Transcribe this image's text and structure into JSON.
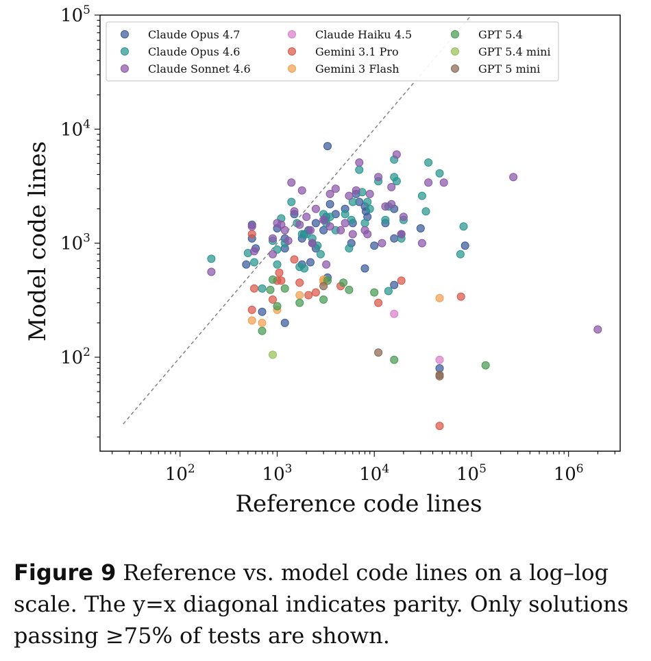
{
  "chart_data": {
    "type": "scatter",
    "xlabel": "Reference code lines",
    "ylabel": "Model code lines",
    "xscale": "log",
    "yscale": "log",
    "xlim": [
      15,
      3400000
    ],
    "ylim": [
      15,
      100000
    ],
    "xticks": [
      {
        "base": "10",
        "exp": "2",
        "value": 100
      },
      {
        "base": "10",
        "exp": "3",
        "value": 1000
      },
      {
        "base": "10",
        "exp": "4",
        "value": 10000
      },
      {
        "base": "10",
        "exp": "5",
        "value": 100000
      },
      {
        "base": "10",
        "exp": "6",
        "value": 1000000
      }
    ],
    "yticks": [
      {
        "base": "10",
        "exp": "2",
        "value": 100
      },
      {
        "base": "10",
        "exp": "3",
        "value": 1000
      },
      {
        "base": "10",
        "exp": "4",
        "value": 10000
      },
      {
        "base": "10",
        "exp": "5",
        "value": 100000
      }
    ],
    "grid": false,
    "legend_position": "top",
    "diagonal": {
      "from": 26,
      "to": 100000
    },
    "series": [
      {
        "name": "Claude Opus 4.7",
        "color": "#3b5b9a",
        "points": [
          [
            3300,
            7100
          ],
          [
            550,
            1450
          ],
          [
            550,
            1100
          ],
          [
            600,
            900
          ],
          [
            480,
            650
          ],
          [
            700,
            250
          ],
          [
            1200,
            200
          ],
          [
            1000,
            1350
          ],
          [
            1200,
            900
          ],
          [
            1200,
            1100
          ],
          [
            1500,
            1800
          ],
          [
            1800,
            1100
          ],
          [
            1900,
            1200
          ],
          [
            2100,
            1300
          ],
          [
            2300,
            1000
          ],
          [
            2500,
            1500
          ],
          [
            3000,
            1300
          ],
          [
            3100,
            1600
          ],
          [
            3200,
            1700
          ],
          [
            3500,
            2200
          ],
          [
            5000,
            2000
          ],
          [
            5800,
            1000
          ],
          [
            6000,
            1500
          ],
          [
            6500,
            2700
          ],
          [
            7000,
            2300
          ],
          [
            8000,
            2100
          ],
          [
            8200,
            1900
          ],
          [
            8000,
            600
          ],
          [
            8500,
            1700
          ],
          [
            10000,
            950
          ],
          [
            13000,
            1500
          ],
          [
            16000,
            2000
          ],
          [
            16000,
            1100
          ],
          [
            16000,
            430
          ],
          [
            19000,
            1200
          ],
          [
            30000,
            1350
          ],
          [
            47000,
            80
          ],
          [
            86000,
            950
          ],
          [
            1800,
            650
          ],
          [
            2200,
            680
          ],
          [
            2500,
            900
          ],
          [
            3300,
            500
          ],
          [
            4000,
            1800
          ]
        ]
      },
      {
        "name": "Claude Opus 4.6",
        "color": "#2a9690",
        "points": [
          [
            210,
            730
          ],
          [
            500,
            820
          ],
          [
            580,
            680
          ],
          [
            700,
            400
          ],
          [
            900,
            1050
          ],
          [
            1000,
            880
          ],
          [
            1000,
            650
          ],
          [
            1100,
            1650
          ],
          [
            1200,
            1000
          ],
          [
            1400,
            2300
          ],
          [
            1600,
            1500
          ],
          [
            1700,
            620
          ],
          [
            1800,
            1200
          ],
          [
            1900,
            600
          ],
          [
            2000,
            1200
          ],
          [
            2300,
            1100
          ],
          [
            2600,
            950
          ],
          [
            2800,
            800
          ],
          [
            3000,
            1800
          ],
          [
            3200,
            1500
          ],
          [
            3500,
            1700
          ],
          [
            4000,
            1300
          ],
          [
            5000,
            1800
          ],
          [
            5500,
            900
          ],
          [
            5800,
            1600
          ],
          [
            6000,
            2300
          ],
          [
            7000,
            4400
          ],
          [
            7500,
            2800
          ],
          [
            8000,
            1500
          ],
          [
            8500,
            2300
          ],
          [
            9000,
            2000
          ],
          [
            11000,
            3500
          ],
          [
            13000,
            1600
          ],
          [
            14000,
            2100
          ],
          [
            16000,
            5400
          ],
          [
            16000,
            3800
          ],
          [
            17000,
            3500
          ],
          [
            19000,
            1100
          ],
          [
            20000,
            1600
          ],
          [
            31000,
            2600
          ],
          [
            34000,
            1900
          ],
          [
            36000,
            5100
          ],
          [
            47000,
            4100
          ],
          [
            77000,
            800
          ],
          [
            83000,
            1400
          ],
          [
            14000,
            380
          ]
        ]
      },
      {
        "name": "Claude Sonnet 4.6",
        "color": "#8a57a8",
        "points": [
          [
            210,
            560
          ],
          [
            550,
            1400
          ],
          [
            580,
            850
          ],
          [
            900,
            1100
          ],
          [
            1000,
            1500
          ],
          [
            1100,
            1450
          ],
          [
            1200,
            1300
          ],
          [
            1300,
            1050
          ],
          [
            1400,
            3400
          ],
          [
            1500,
            1900
          ],
          [
            1700,
            1450
          ],
          [
            1800,
            2900
          ],
          [
            2000,
            1700
          ],
          [
            2200,
            1300
          ],
          [
            2500,
            2000
          ],
          [
            3000,
            1600
          ],
          [
            3200,
            650
          ],
          [
            3500,
            2700
          ],
          [
            4000,
            3000
          ],
          [
            4500,
            1300
          ],
          [
            5000,
            1500
          ],
          [
            5500,
            2600
          ],
          [
            6000,
            1200
          ],
          [
            6500,
            2900
          ],
          [
            7000,
            5100
          ],
          [
            8000,
            1300
          ],
          [
            8500,
            1200
          ],
          [
            9000,
            2700
          ],
          [
            11000,
            3800
          ],
          [
            12000,
            1000
          ],
          [
            13000,
            2100
          ],
          [
            15000,
            2200
          ],
          [
            15000,
            3100
          ],
          [
            17000,
            6000
          ],
          [
            19000,
            1200
          ],
          [
            20000,
            1700
          ],
          [
            31000,
            1000
          ],
          [
            36000,
            3400
          ],
          [
            52000,
            3400
          ],
          [
            270000,
            3800
          ],
          [
            2000000,
            175
          ],
          [
            900,
            800
          ],
          [
            2300,
            1000
          ],
          [
            3500,
            1400
          ]
        ]
      },
      {
        "name": "Claude Haiku 4.5",
        "color": "#d97fc9",
        "points": [
          [
            16000,
            240
          ],
          [
            47000,
            95
          ]
        ]
      },
      {
        "name": "Gemini 3.1 Pro",
        "color": "#d9574a",
        "points": [
          [
            550,
            1200
          ],
          [
            580,
            400
          ],
          [
            550,
            260
          ],
          [
            900,
            320
          ],
          [
            1050,
            550
          ],
          [
            1100,
            470
          ],
          [
            1500,
            720
          ],
          [
            1700,
            450
          ],
          [
            2100,
            350
          ],
          [
            2500,
            370
          ],
          [
            4500,
            420
          ],
          [
            11000,
            300
          ],
          [
            19000,
            470
          ],
          [
            47000,
            25
          ],
          [
            78000,
            340
          ],
          [
            1000,
            470
          ]
        ]
      },
      {
        "name": "Gemini 3 Flash",
        "color": "#f0a050",
        "points": [
          [
            550,
            210
          ],
          [
            700,
            200
          ],
          [
            1000,
            260
          ],
          [
            1700,
            350
          ],
          [
            3000,
            480
          ],
          [
            3000,
            460
          ],
          [
            47000,
            330
          ]
        ]
      },
      {
        "name": "GPT 5.4",
        "color": "#4a9a55",
        "points": [
          [
            700,
            170
          ],
          [
            850,
            390
          ],
          [
            900,
            480
          ],
          [
            1000,
            280
          ],
          [
            1200,
            400
          ],
          [
            1700,
            300
          ],
          [
            3000,
            320
          ],
          [
            3300,
            470
          ],
          [
            4800,
            450
          ],
          [
            5500,
            390
          ],
          [
            10000,
            370
          ],
          [
            16000,
            95
          ],
          [
            140000,
            85
          ]
        ]
      },
      {
        "name": "GPT 5.4 mini",
        "color": "#98c05a",
        "points": [
          [
            900,
            105
          ]
        ]
      },
      {
        "name": "GPT 5 mini",
        "color": "#8b6a55",
        "points": [
          [
            11000,
            110
          ],
          [
            3000,
            420
          ],
          [
            47000,
            70
          ],
          [
            47000,
            68
          ]
        ]
      }
    ]
  },
  "caption": {
    "label": "Figure 9",
    "text": "Reference vs. model code lines on a log–log scale. The y=x diagonal indicates parity. Only solutions passing ≥75% of tests are shown."
  }
}
